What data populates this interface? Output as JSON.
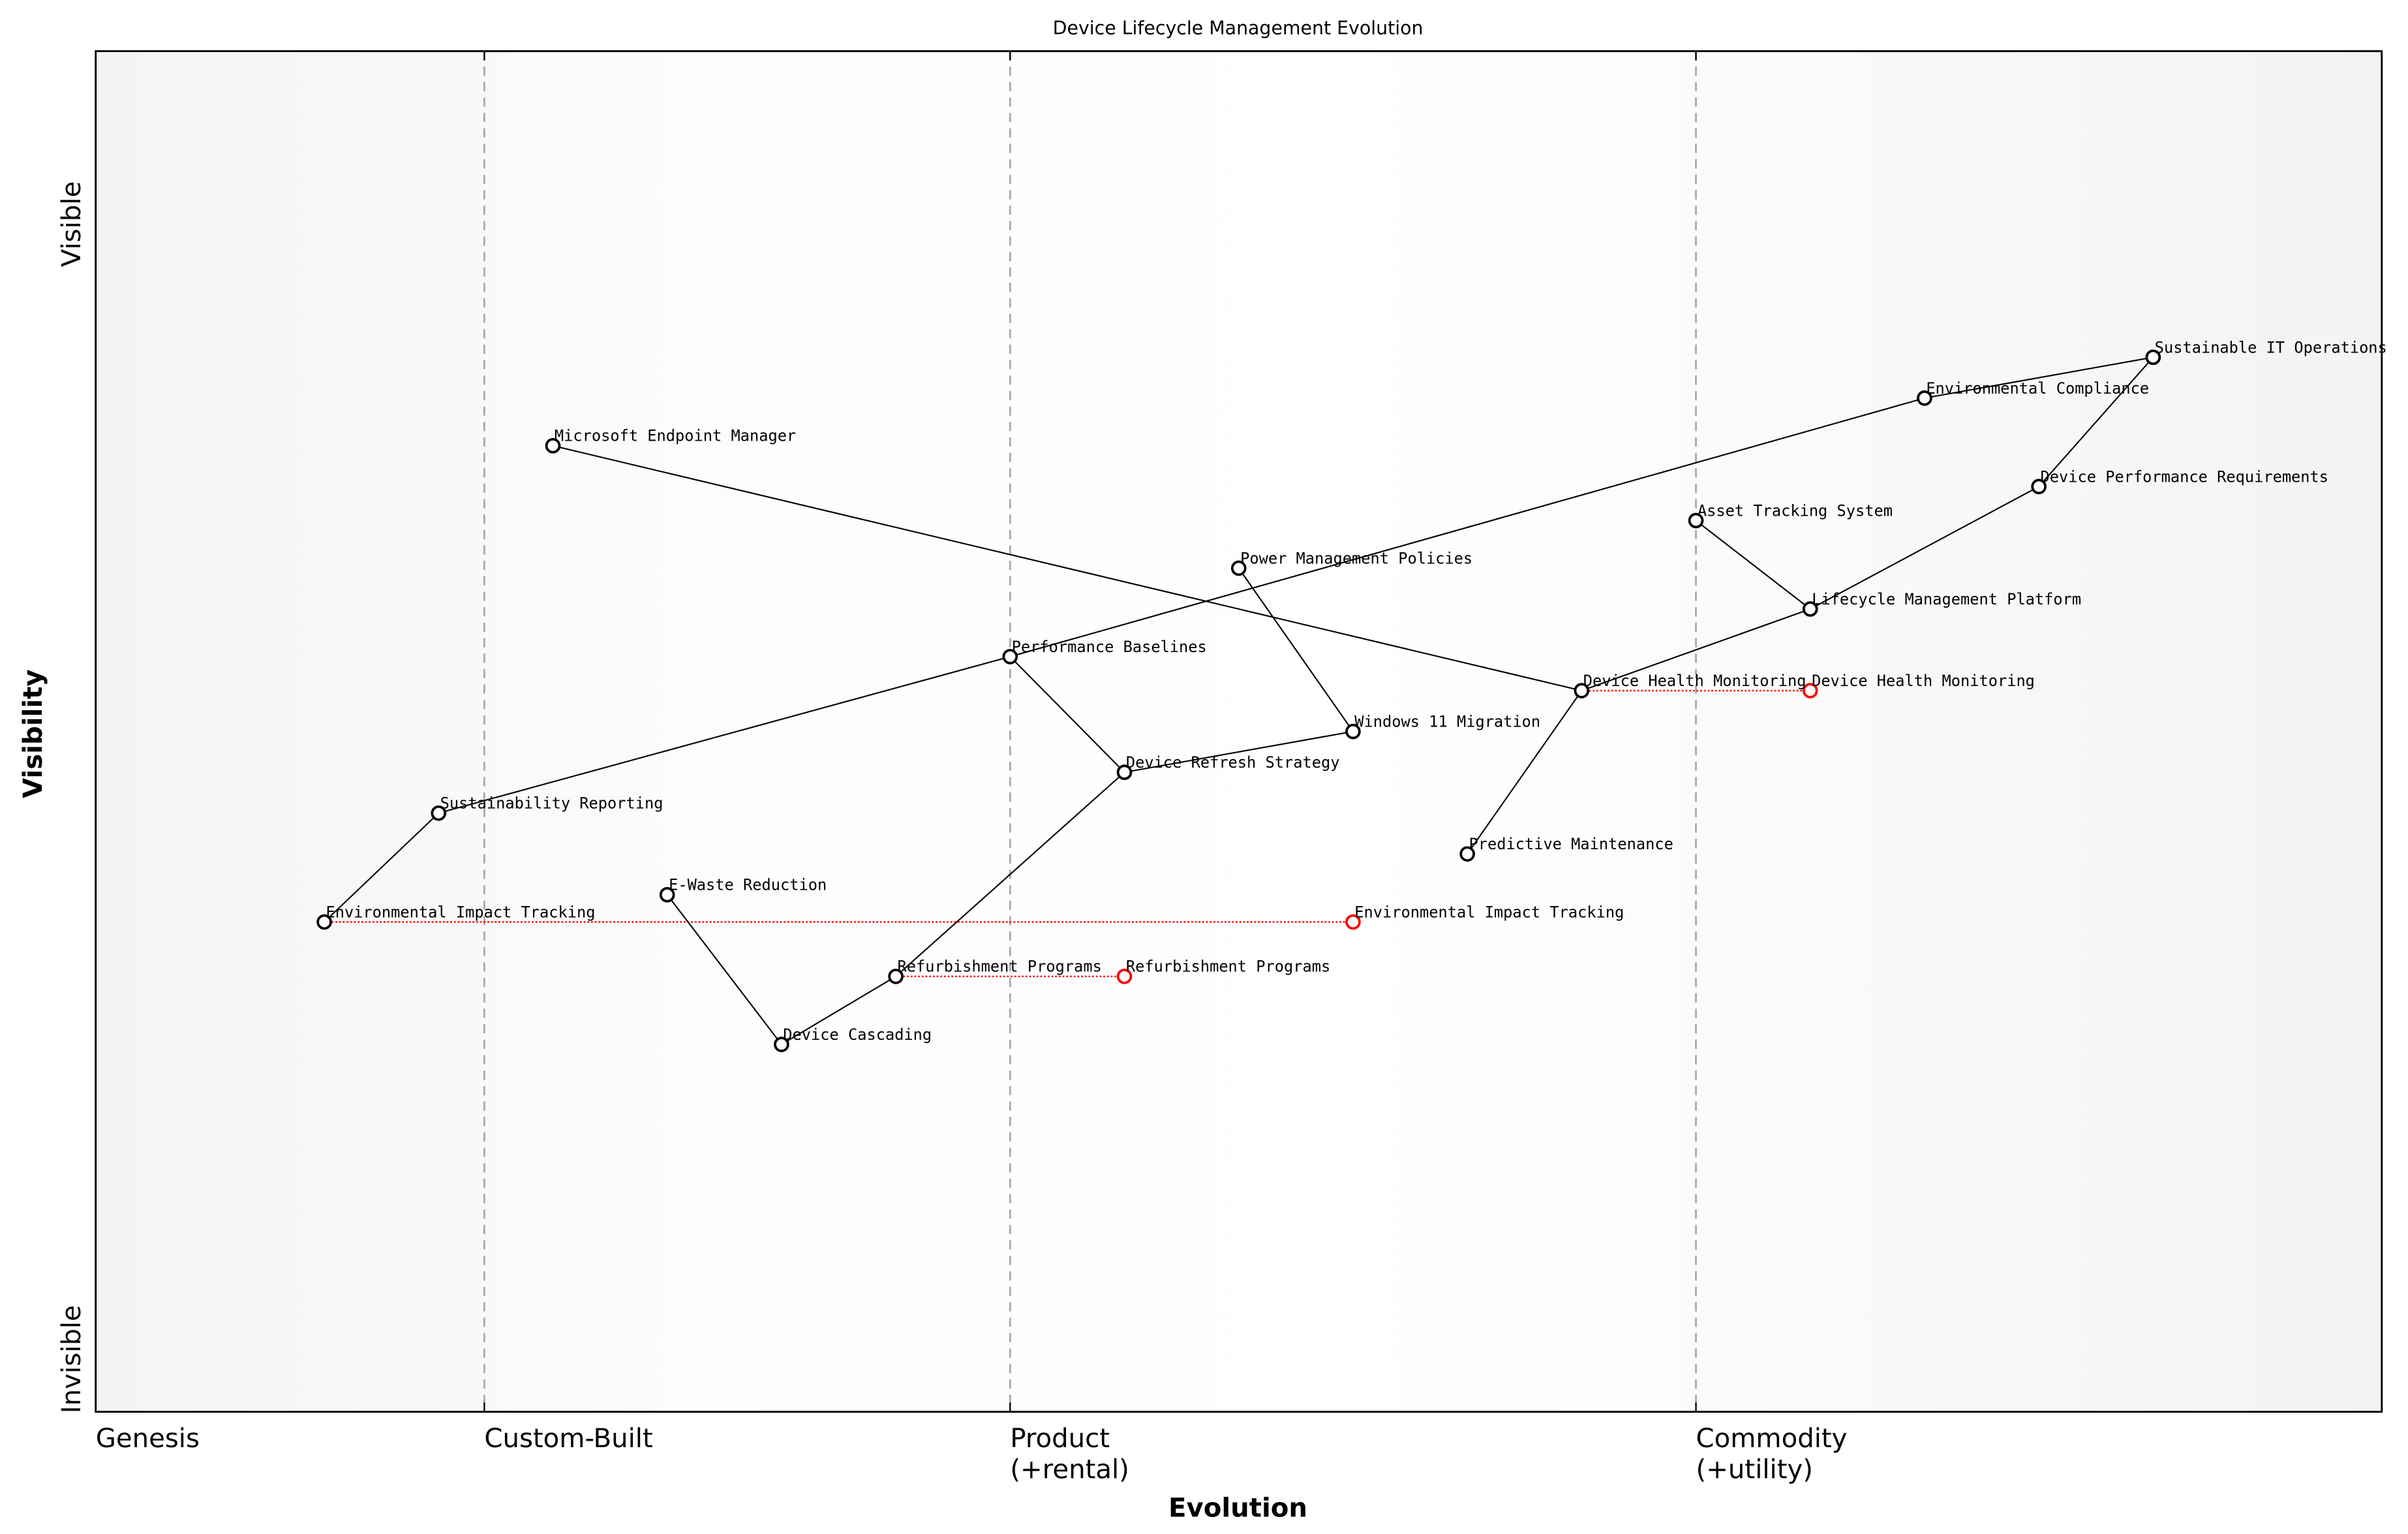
{
  "chart_data": {
    "type": "scatter",
    "title": "Device Lifecycle Management Evolution",
    "xlabel": "Evolution",
    "ylabel": "Visibility",
    "xlim": [
      0,
      1
    ],
    "ylim": [
      0,
      1
    ],
    "grid": false,
    "y_tick_labels": {
      "top": "Visible",
      "bottom": "Invisible"
    },
    "stages": [
      {
        "label": "Genesis",
        "x": 0.0
      },
      {
        "label": "Custom-Built",
        "x": 0.17
      },
      {
        "label": "Product\n(+rental)",
        "x": 0.4
      },
      {
        "label": "Commodity\n(+utility)",
        "x": 0.7
      }
    ],
    "colors": {
      "node": "#000000",
      "evolved_node": "#ff0000",
      "edge": "#000000",
      "evolution_line": "#ff0000",
      "stage_line": "#aaaaaa"
    },
    "components": [
      {
        "name": "Environmental Impact Tracking",
        "x": 0.1,
        "y": 0.36
      },
      {
        "name": "Sustainability Reporting",
        "x": 0.15,
        "y": 0.44
      },
      {
        "name": "Microsoft Endpoint Manager",
        "x": 0.2,
        "y": 0.71
      },
      {
        "name": "E-Waste Reduction",
        "x": 0.25,
        "y": 0.38
      },
      {
        "name": "Device Cascading",
        "x": 0.3,
        "y": 0.27
      },
      {
        "name": "Refurbishment Programs",
        "x": 0.35,
        "y": 0.32
      },
      {
        "name": "Performance Baselines",
        "x": 0.4,
        "y": 0.555
      },
      {
        "name": "Device Refresh Strategy",
        "x": 0.45,
        "y": 0.47
      },
      {
        "name": "Power Management Policies",
        "x": 0.5,
        "y": 0.62
      },
      {
        "name": "Windows 11 Migration",
        "x": 0.55,
        "y": 0.5
      },
      {
        "name": "Predictive Maintenance",
        "x": 0.6,
        "y": 0.41
      },
      {
        "name": "Device Health Monitoring",
        "x": 0.65,
        "y": 0.53
      },
      {
        "name": "Asset Tracking System",
        "x": 0.7,
        "y": 0.655
      },
      {
        "name": "Lifecycle Management Platform",
        "x": 0.75,
        "y": 0.59
      },
      {
        "name": "Environmental Compliance",
        "x": 0.8,
        "y": 0.745
      },
      {
        "name": "Device Performance Requirements",
        "x": 0.85,
        "y": 0.68
      },
      {
        "name": "Sustainable IT Operations",
        "x": 0.9,
        "y": 0.775
      }
    ],
    "links": [
      [
        "Environmental Impact Tracking",
        "Sustainability Reporting"
      ],
      [
        "Sustainability Reporting",
        "Performance Baselines"
      ],
      [
        "Performance Baselines",
        "Environmental Compliance"
      ],
      [
        "Environmental Compliance",
        "Sustainable IT Operations"
      ],
      [
        "Sustainable IT Operations",
        "Device Performance Requirements"
      ],
      [
        "Device Performance Requirements",
        "Lifecycle Management Platform"
      ],
      [
        "Lifecycle Management Platform",
        "Asset Tracking System"
      ],
      [
        "Lifecycle Management Platform",
        "Device Health Monitoring"
      ],
      [
        "Device Health Monitoring",
        "Microsoft Endpoint Manager"
      ],
      [
        "Device Health Monitoring",
        "Predictive Maintenance"
      ],
      [
        "Performance Baselines",
        "Device Refresh Strategy"
      ],
      [
        "Device Refresh Strategy",
        "Windows 11 Migration"
      ],
      [
        "Windows 11 Migration",
        "Power Management Policies"
      ],
      [
        "Device Refresh Strategy",
        "Refurbishment Programs"
      ],
      [
        "Refurbishment Programs",
        "Device Cascading"
      ],
      [
        "Device Cascading",
        "E-Waste Reduction"
      ]
    ],
    "evolutions": [
      {
        "name": "Device Health Monitoring",
        "from_x": 0.65,
        "to_x": 0.75,
        "y": 0.53
      },
      {
        "name": "Environmental Impact Tracking",
        "from_x": 0.1,
        "to_x": 0.55,
        "y": 0.36
      },
      {
        "name": "Refurbishment Programs",
        "from_x": 0.35,
        "to_x": 0.45,
        "y": 0.32
      }
    ]
  }
}
